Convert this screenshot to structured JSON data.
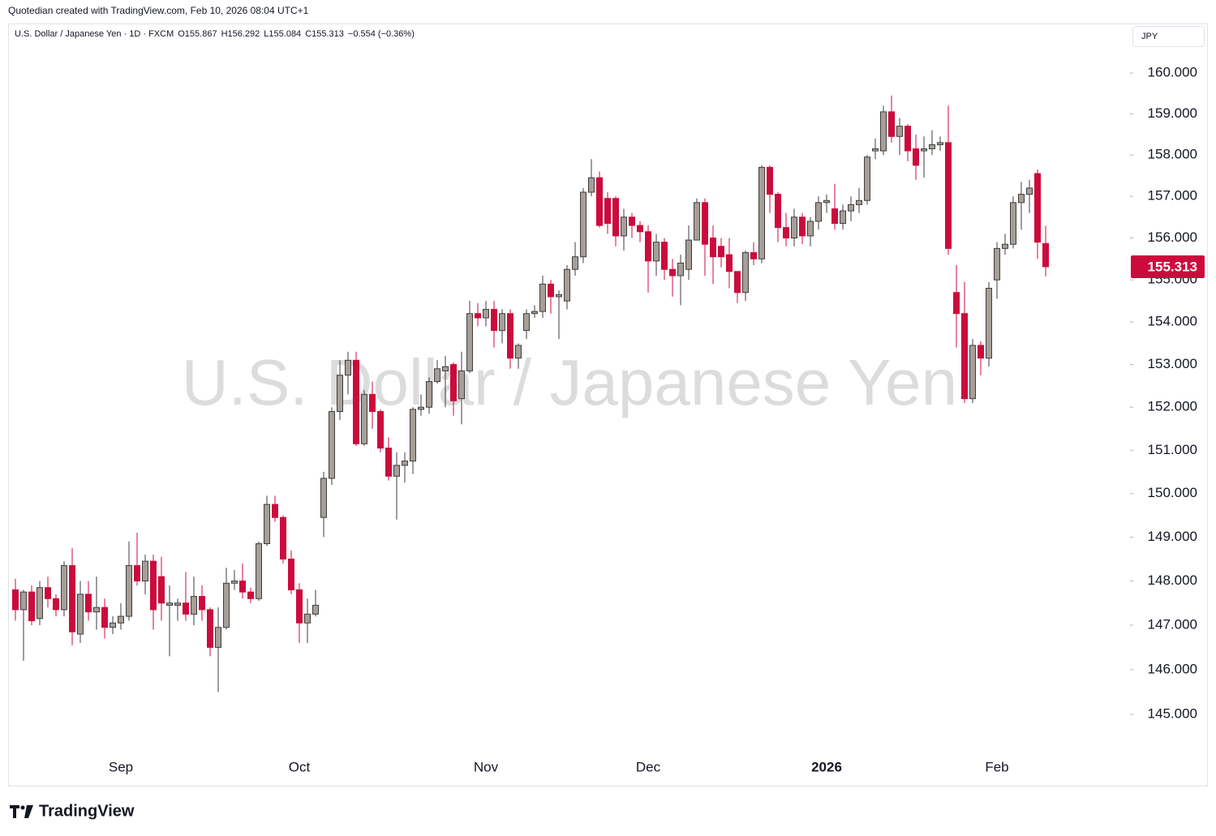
{
  "header": {
    "credit": "Quotedian created with TradingView.com, Feb 10, 2026 08:04 UTC+1"
  },
  "footer": {
    "brand": "TradingView"
  },
  "chart_data": {
    "type": "candlestick",
    "symbol": "U.S. Dollar / Japanese Yen · 1D · FXCM",
    "legend_open": "O155.867",
    "legend_high": "H156.292",
    "legend_low": "L155.084",
    "legend_close": "C155.313",
    "legend_change": "−0.554 (−0.36%)",
    "watermark": "U.S. Dollar / Japanese Yen",
    "currency": "JPY",
    "last_price_label": "155.313",
    "log": true,
    "up_color": "#a79f97",
    "up_border_color": "#3e3e3e",
    "down_color": "#cc0b3d",
    "ylim": [
      144.12,
      161.16
    ],
    "yticks": [
      {
        "value": 145,
        "label": "145.000"
      },
      {
        "value": 146,
        "label": "146.000"
      },
      {
        "value": 147,
        "label": "147.000"
      },
      {
        "value": 148,
        "label": "148.000"
      },
      {
        "value": 149,
        "label": "149.000"
      },
      {
        "value": 150,
        "label": "150.000"
      },
      {
        "value": 151,
        "label": "151.000"
      },
      {
        "value": 152,
        "label": "152.000"
      },
      {
        "value": 153,
        "label": "153.000"
      },
      {
        "value": 154,
        "label": "154.000"
      },
      {
        "value": 155,
        "label": "155.000"
      },
      {
        "value": 156,
        "label": "156.000"
      },
      {
        "value": 157,
        "label": "157.000"
      },
      {
        "value": 158,
        "label": "158.000"
      },
      {
        "value": 159,
        "label": "159.000"
      },
      {
        "value": 160,
        "label": "160.000"
      }
    ],
    "categories": [
      null,
      null,
      null,
      null,
      null,
      null,
      null,
      null,
      null,
      null,
      null,
      null,
      null,
      "Sep",
      null,
      null,
      null,
      null,
      null,
      null,
      null,
      null,
      null,
      null,
      null,
      null,
      null,
      null,
      null,
      null,
      null,
      null,
      null,
      null,
      null,
      "Oct",
      null,
      null,
      null,
      null,
      null,
      null,
      null,
      null,
      null,
      null,
      null,
      null,
      null,
      null,
      null,
      null,
      null,
      null,
      null,
      null,
      null,
      null,
      "Nov",
      null,
      null,
      null,
      null,
      null,
      null,
      null,
      null,
      null,
      null,
      null,
      null,
      null,
      null,
      null,
      null,
      null,
      null,
      null,
      "Dec",
      null,
      null,
      null,
      null,
      null,
      null,
      null,
      null,
      null,
      null,
      null,
      null,
      null,
      null,
      null,
      null,
      null,
      null,
      null,
      null,
      null,
      "2026",
      null,
      null,
      null,
      null,
      null,
      null,
      null,
      null,
      null,
      null,
      null,
      null,
      null,
      null,
      null,
      null,
      null,
      null,
      null,
      null,
      "Feb",
      null,
      null,
      null,
      null,
      null,
      null
    ],
    "open": [
      147.8,
      147.35,
      147.75,
      147.15,
      147.85,
      147.6,
      147.35,
      148.35,
      146.8,
      147.7,
      147.3,
      147.4,
      146.95,
      147.05,
      147.2,
      148.35,
      148.0,
      148.45,
      148.1,
      147.45,
      147.45,
      147.5,
      147.25,
      147.65,
      147.35,
      146.5,
      146.95,
      147.95,
      148.0,
      147.75,
      147.6,
      148.85,
      149.75,
      149.45,
      148.5,
      147.8,
      147.05,
      147.25,
      149.45,
      150.35,
      151.9,
      152.75,
      153.1,
      151.15,
      152.3,
      151.9,
      151.05,
      150.4,
      150.65,
      150.75,
      151.95,
      152.0,
      152.6,
      152.85,
      153.0,
      152.2,
      152.85,
      154.2,
      154.1,
      154.3,
      153.8,
      154.2,
      153.15,
      153.8,
      154.2,
      154.25,
      154.9,
      154.6,
      154.5,
      155.25,
      155.55,
      157.1,
      157.45,
      156.95,
      156.95,
      156.05,
      156.5,
      156.3,
      156.15,
      155.45,
      155.9,
      155.25,
      155.1,
      155.25,
      155.95,
      156.85,
      156.0,
      155.8,
      155.6,
      155.2,
      154.7,
      155.65,
      155.5,
      157.7,
      157.05,
      156.25,
      156.0,
      156.5,
      156.05,
      156.4,
      156.85,
      156.7,
      156.35,
      156.65,
      156.8,
      156.9,
      158.1,
      158.1,
      159.05,
      158.45,
      158.7,
      158.15,
      158.1,
      158.15,
      158.25,
      158.3,
      154.7,
      154.2,
      152.2,
      153.45,
      153.15,
      155.0,
      155.75,
      155.85,
      156.85,
      157.05,
      157.55,
      155.867
    ],
    "high": [
      148.05,
      147.8,
      147.9,
      148.0,
      148.1,
      147.7,
      148.45,
      148.75,
      148.0,
      148.0,
      148.1,
      147.6,
      147.2,
      147.5,
      148.9,
      149.1,
      148.6,
      148.6,
      148.55,
      147.9,
      147.6,
      148.2,
      148.1,
      147.9,
      147.4,
      147.4,
      148.3,
      148.25,
      148.4,
      147.85,
      148.9,
      149.95,
      149.95,
      149.5,
      148.7,
      147.95,
      147.6,
      147.8,
      150.5,
      152.0,
      153.1,
      153.3,
      153.3,
      152.4,
      152.6,
      151.95,
      151.3,
      150.95,
      150.95,
      152.0,
      152.3,
      152.7,
      153.1,
      153.2,
      153.05,
      153.3,
      154.5,
      154.45,
      154.5,
      154.5,
      154.3,
      154.3,
      153.5,
      154.3,
      154.4,
      155.1,
      155.0,
      154.75,
      155.35,
      155.9,
      157.2,
      157.9,
      157.6,
      157.1,
      157.0,
      156.7,
      156.6,
      156.4,
      156.3,
      156.1,
      156.0,
      155.5,
      155.6,
      156.3,
      156.95,
      156.95,
      156.3,
      156.0,
      156.0,
      155.2,
      155.7,
      155.9,
      157.75,
      157.75,
      157.1,
      156.6,
      156.7,
      156.6,
      156.5,
      157.0,
      157.05,
      157.3,
      156.8,
      157.0,
      157.2,
      158.0,
      158.4,
      159.2,
      159.45,
      158.9,
      158.75,
      158.5,
      158.45,
      158.6,
      158.45,
      159.2,
      155.35,
      154.95,
      153.6,
      153.55,
      154.95,
      155.9,
      156.1,
      157.0,
      157.35,
      157.4,
      157.65,
      156.292
    ],
    "low": [
      147.1,
      146.2,
      147.0,
      147.0,
      147.4,
      147.2,
      147.2,
      146.55,
      146.6,
      147.1,
      146.9,
      146.7,
      146.8,
      146.9,
      147.1,
      147.9,
      147.7,
      146.9,
      147.1,
      146.3,
      147.1,
      147.1,
      147.0,
      147.1,
      146.3,
      145.5,
      146.9,
      147.8,
      147.6,
      147.5,
      147.55,
      148.8,
      149.35,
      148.4,
      147.7,
      146.6,
      146.6,
      147.2,
      149.0,
      150.2,
      151.7,
      152.3,
      151.1,
      151.1,
      151.5,
      150.95,
      150.3,
      149.4,
      150.25,
      150.45,
      151.8,
      151.85,
      152.55,
      152.0,
      151.8,
      151.6,
      152.8,
      153.9,
      153.9,
      153.4,
      153.5,
      152.9,
      152.9,
      153.6,
      154.1,
      154.1,
      154.2,
      153.6,
      154.3,
      155.1,
      155.4,
      157.0,
      156.25,
      156.1,
      155.8,
      155.7,
      156.0,
      155.9,
      154.7,
      155.1,
      155.0,
      154.6,
      154.4,
      155.0,
      155.95,
      155.1,
      154.9,
      155.3,
      154.8,
      154.45,
      154.5,
      155.35,
      155.4,
      156.6,
      155.9,
      155.8,
      155.8,
      155.85,
      155.8,
      156.2,
      156.6,
      156.2,
      156.2,
      156.4,
      156.6,
      156.8,
      157.9,
      158.0,
      158.3,
      158.0,
      157.85,
      157.4,
      157.45,
      158.0,
      158.1,
      155.6,
      153.4,
      152.1,
      152.1,
      152.75,
      152.95,
      154.55,
      155.6,
      155.75,
      156.2,
      156.6,
      155.5,
      155.084
    ],
    "close": [
      147.35,
      147.75,
      147.1,
      147.85,
      147.6,
      147.35,
      148.35,
      146.85,
      147.7,
      147.3,
      147.4,
      146.95,
      147.05,
      147.2,
      148.35,
      148.0,
      148.45,
      147.35,
      147.5,
      147.5,
      147.5,
      147.25,
      147.65,
      147.35,
      146.5,
      146.95,
      147.95,
      148.0,
      147.75,
      147.6,
      148.85,
      149.75,
      149.45,
      148.5,
      147.8,
      147.05,
      147.25,
      147.45,
      150.35,
      151.9,
      152.75,
      153.1,
      151.15,
      152.3,
      151.9,
      151.05,
      150.4,
      150.65,
      150.75,
      151.95,
      152.0,
      152.6,
      152.9,
      152.95,
      152.15,
      152.85,
      154.2,
      154.1,
      154.3,
      153.8,
      154.2,
      153.15,
      153.45,
      154.2,
      154.25,
      154.9,
      154.6,
      154.65,
      155.25,
      155.55,
      157.1,
      157.45,
      156.3,
      156.35,
      156.05,
      156.5,
      156.3,
      156.15,
      155.45,
      155.9,
      155.25,
      155.1,
      155.4,
      155.95,
      156.85,
      155.85,
      155.55,
      155.55,
      155.2,
      154.7,
      155.65,
      155.5,
      157.7,
      157.05,
      156.25,
      156.0,
      156.5,
      156.05,
      156.4,
      156.85,
      156.9,
      156.35,
      156.65,
      156.8,
      156.9,
      157.95,
      158.15,
      159.05,
      158.45,
      158.7,
      158.1,
      157.75,
      158.15,
      158.25,
      158.3,
      155.75,
      154.2,
      152.2,
      153.45,
      153.15,
      154.8,
      155.75,
      155.85,
      156.85,
      157.05,
      157.2,
      155.9,
      155.313
    ]
  }
}
